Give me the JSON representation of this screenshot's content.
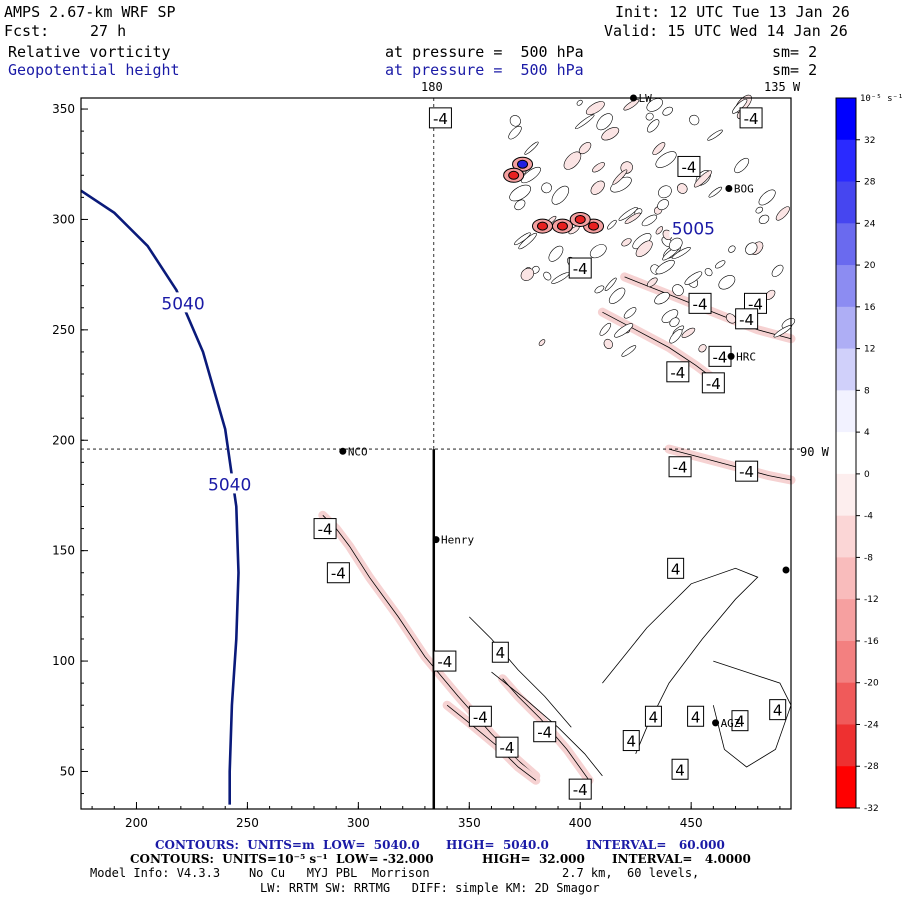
{
  "header": {
    "model": "AMPS 2.67-km WRF SP",
    "fcst_label": "Fcst:",
    "fcst_value": "27 h",
    "init": "Init: 12 UTC Tue 13 Jan 26",
    "valid": "Valid: 15 UTC Wed 14 Jan 26",
    "field1": "Relative vorticity",
    "field1_level": "at pressure =  500 hPa",
    "field1_sm": "sm= 2",
    "field2": "Geopotential height",
    "field2_level": "at pressure =  500 hPa",
    "field2_sm": "sm= 2"
  },
  "map_labels": {
    "lon180": "180",
    "lon135": "135 W",
    "lon90": "90 W"
  },
  "stations": [
    {
      "name": "BOG",
      "x": 467,
      "y": 314
    },
    {
      "name": "HRC",
      "x": 468,
      "y": 238
    },
    {
      "name": "NCO",
      "x": 293,
      "y": 195
    },
    {
      "name": "Henry",
      "x": 335,
      "y": 155
    },
    {
      "name": "AGZ",
      "x": 461,
      "y": 72
    },
    {
      "name": "LW",
      "x": 424,
      "y": 355
    }
  ],
  "colorbar": {
    "unit": "10⁻⁵ s⁻¹",
    "ticks": [
      "32",
      "28",
      "24",
      "20",
      "16",
      "12",
      "8",
      "4",
      "0",
      "-4",
      "-8",
      "-12",
      "-16",
      "-20",
      "-24",
      "-28",
      "-32"
    ],
    "colors": [
      "#0000ff",
      "#2a2aff",
      "#4646f0",
      "#6a6aef",
      "#8c8cf2",
      "#aeaef5",
      "#d0d0fa",
      "#f2f2ff",
      "#ffffff",
      "#fdeeee",
      "#fbd6d6",
      "#f9bcbc",
      "#f6a0a0",
      "#f38080",
      "#f05a5a",
      "#ee3030",
      "#ff0000"
    ]
  },
  "footer": {
    "line1_a": "CONTOURS:  UNITS=m  LOW=  5040.0",
    "line1_b": "HIGH=  5040.0",
    "line1_c": "INTERVAL=   60.000",
    "line2_a": "CONTOURS:  UNITS=10⁻⁵ s⁻¹  LOW= -32.000",
    "line2_b": "HIGH=  32.000",
    "line2_c": "INTERVAL=   4.0000",
    "line3_a": "Model Info: V4.3.3    No Cu   MYJ PBL  Morrison",
    "line3_b": "2.7 km,  60 levels,",
    "line4": "LW: RRTM SW: RRTMG   DIFF: simple KM: 2D Smagor"
  },
  "chart_data": {
    "type": "contour_map",
    "title": "Relative vorticity / Geopotential height at 500 hPa",
    "xlim": [
      175,
      495
    ],
    "ylim": [
      33,
      355
    ],
    "xticks": [
      200,
      250,
      300,
      350,
      400,
      450
    ],
    "yticks": [
      50,
      100,
      150,
      200,
      250,
      300,
      350
    ],
    "height_contours": [
      {
        "label": "5040",
        "points": [
          [
            175,
            313
          ],
          [
            190,
            303
          ],
          [
            205,
            288
          ],
          [
            218,
            268
          ],
          [
            230,
            240
          ],
          [
            240,
            205
          ],
          [
            245,
            170
          ],
          [
            246,
            140
          ],
          [
            245,
            110
          ],
          [
            243,
            80
          ],
          [
            242,
            50
          ],
          [
            242,
            35
          ]
        ]
      }
    ],
    "height_labels": [
      {
        "text": "5040",
        "x": 221,
        "y": 262
      },
      {
        "text": "5040",
        "x": 242,
        "y": 180
      },
      {
        "text": "5005",
        "x": 451,
        "y": 296
      }
    ],
    "vort_labels": [
      {
        "text": "-4",
        "x": 337,
        "y": 346
      },
      {
        "text": "-4",
        "x": 477,
        "y": 346
      },
      {
        "text": "-4",
        "x": 449,
        "y": 324
      },
      {
        "text": "-4",
        "x": 400,
        "y": 278
      },
      {
        "text": "-4",
        "x": 454,
        "y": 262
      },
      {
        "text": "-4",
        "x": 479,
        "y": 262
      },
      {
        "text": "-4",
        "x": 475,
        "y": 255
      },
      {
        "text": "-4",
        "x": 463,
        "y": 238
      },
      {
        "text": "-4",
        "x": 444,
        "y": 231
      },
      {
        "text": "-4",
        "x": 460,
        "y": 226
      },
      {
        "text": "-4",
        "x": 445,
        "y": 188
      },
      {
        "text": "-4",
        "x": 475,
        "y": 186
      },
      {
        "text": "-4",
        "x": 285,
        "y": 160
      },
      {
        "text": "-4",
        "x": 291,
        "y": 140
      },
      {
        "text": "-4",
        "x": 339,
        "y": 100
      },
      {
        "text": "-4",
        "x": 355,
        "y": 75
      },
      {
        "text": "-4",
        "x": 384,
        "y": 68
      },
      {
        "text": "-4",
        "x": 367,
        "y": 61
      },
      {
        "text": "-4",
        "x": 400,
        "y": 42
      },
      {
        "text": "4",
        "x": 443,
        "y": 142
      },
      {
        "text": "4",
        "x": 364,
        "y": 104
      },
      {
        "text": "4",
        "x": 433,
        "y": 75
      },
      {
        "text": "4",
        "x": 452,
        "y": 75
      },
      {
        "text": "4",
        "x": 472,
        "y": 73
      },
      {
        "text": "4",
        "x": 489,
        "y": 78
      },
      {
        "text": "4",
        "x": 423,
        "y": 64
      },
      {
        "text": "4",
        "x": 445,
        "y": 51
      }
    ],
    "vort_lines": [
      {
        "sign": "neg",
        "points": [
          [
            284,
            166
          ],
          [
            290,
            160
          ],
          [
            296,
            152
          ],
          [
            305,
            138
          ],
          [
            318,
            120
          ],
          [
            330,
            102
          ],
          [
            345,
            84
          ],
          [
            360,
            67
          ],
          [
            372,
            55
          ],
          [
            380,
            48
          ]
        ]
      },
      {
        "sign": "neg",
        "points": [
          [
            340,
            80
          ],
          [
            350,
            72
          ],
          [
            362,
            62
          ],
          [
            372,
            52
          ],
          [
            380,
            46
          ]
        ]
      },
      {
        "sign": "neg",
        "points": [
          [
            365,
            92
          ],
          [
            372,
            84
          ],
          [
            382,
            74
          ],
          [
            394,
            60
          ],
          [
            404,
            46
          ]
        ]
      },
      {
        "sign": "neg",
        "points": [
          [
            440,
            196
          ],
          [
            455,
            192
          ],
          [
            470,
            188
          ],
          [
            485,
            184
          ],
          [
            495,
            182
          ]
        ]
      },
      {
        "sign": "neg",
        "points": [
          [
            420,
            274
          ],
          [
            440,
            266
          ],
          [
            460,
            258
          ],
          [
            480,
            250
          ],
          [
            495,
            246
          ]
        ]
      },
      {
        "sign": "neg",
        "points": [
          [
            410,
            258
          ],
          [
            425,
            250
          ],
          [
            440,
            242
          ],
          [
            452,
            234
          ],
          [
            460,
            228
          ]
        ]
      },
      {
        "sign": "pos",
        "points": [
          [
            350,
            120
          ],
          [
            360,
            110
          ],
          [
            372,
            96
          ],
          [
            384,
            84
          ],
          [
            396,
            70
          ]
        ]
      },
      {
        "sign": "pos",
        "points": [
          [
            360,
            95
          ],
          [
            375,
            83
          ],
          [
            390,
            70
          ],
          [
            402,
            58
          ],
          [
            410,
            48
          ]
        ]
      },
      {
        "sign": "pos",
        "points": [
          [
            410,
            90
          ],
          [
            430,
            115
          ],
          [
            450,
            135
          ],
          [
            470,
            142
          ],
          [
            480,
            138
          ],
          [
            470,
            128
          ],
          [
            455,
            110
          ],
          [
            440,
            90
          ],
          [
            430,
            70
          ],
          [
            425,
            58
          ]
        ]
      },
      {
        "sign": "pos",
        "points": [
          [
            460,
            100
          ],
          [
            475,
            95
          ],
          [
            490,
            90
          ],
          [
            495,
            80
          ],
          [
            488,
            60
          ],
          [
            475,
            52
          ],
          [
            465,
            60
          ],
          [
            460,
            80
          ]
        ]
      }
    ],
    "blobs": [
      {
        "x": 374,
        "y": 325,
        "sign": "pos"
      },
      {
        "x": 370,
        "y": 320,
        "sign": "neg"
      },
      {
        "x": 383,
        "y": 297,
        "sign": "neg"
      },
      {
        "x": 392,
        "y": 297,
        "sign": "neg"
      },
      {
        "x": 406,
        "y": 297,
        "sign": "neg"
      },
      {
        "x": 400,
        "y": 300,
        "sign": "neg"
      }
    ],
    "cross_lines": {
      "lon180_x": 334,
      "lon90_y": 196
    }
  }
}
